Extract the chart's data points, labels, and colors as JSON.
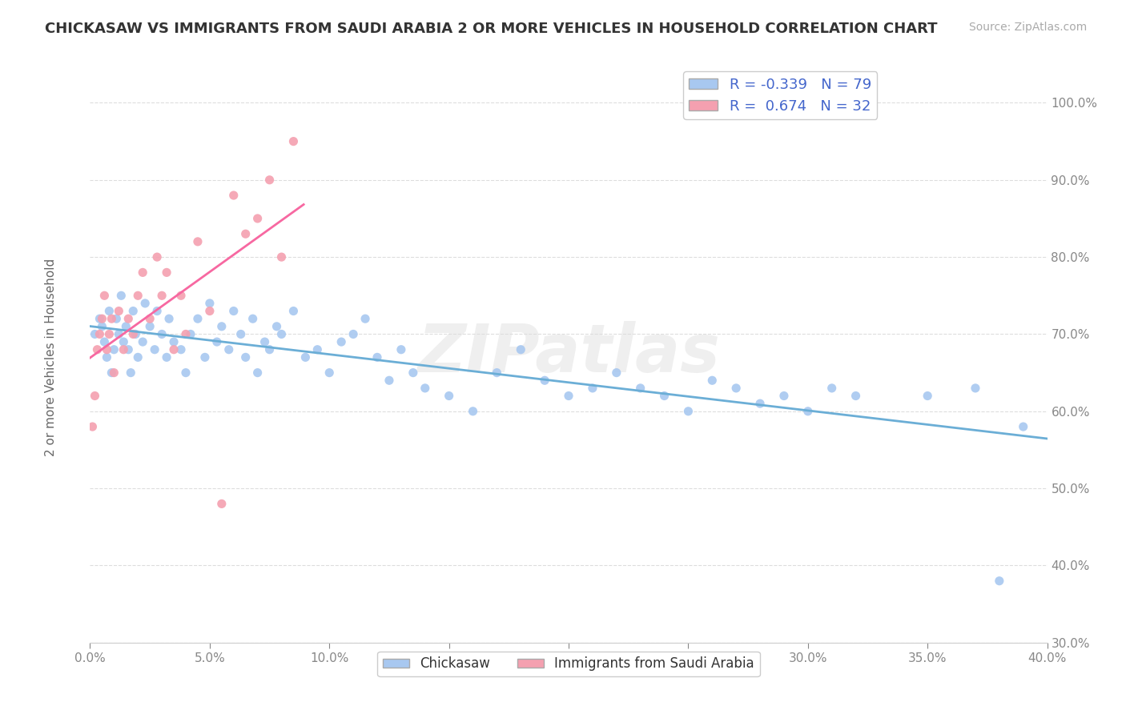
{
  "title": "CHICKASAW VS IMMIGRANTS FROM SAUDI ARABIA 2 OR MORE VEHICLES IN HOUSEHOLD CORRELATION CHART",
  "source": "Source: ZipAtlas.com",
  "ylabel": "2 or more Vehicles in Household",
  "legend_labels": [
    "Chickasaw",
    "Immigrants from Saudi Arabia"
  ],
  "chickasaw_color": "#a8c8f0",
  "saudi_color": "#f4a0b0",
  "chickasaw_line_color": "#6baed6",
  "saudi_line_color": "#f768a1",
  "legend_text_color": "#4466cc",
  "R_chickasaw": -0.339,
  "N_chickasaw": 79,
  "R_saudi": 0.674,
  "N_saudi": 32,
  "xlim": [
    0.0,
    0.4
  ],
  "ylim": [
    0.3,
    1.05
  ],
  "background_color": "#ffffff",
  "watermark": "ZIPatlas",
  "chickasaw_x": [
    0.002,
    0.004,
    0.005,
    0.006,
    0.007,
    0.008,
    0.009,
    0.01,
    0.011,
    0.012,
    0.013,
    0.014,
    0.015,
    0.016,
    0.017,
    0.018,
    0.019,
    0.02,
    0.022,
    0.023,
    0.025,
    0.027,
    0.028,
    0.03,
    0.032,
    0.033,
    0.035,
    0.038,
    0.04,
    0.042,
    0.045,
    0.048,
    0.05,
    0.053,
    0.055,
    0.058,
    0.06,
    0.063,
    0.065,
    0.068,
    0.07,
    0.073,
    0.075,
    0.078,
    0.08,
    0.085,
    0.09,
    0.095,
    0.1,
    0.105,
    0.11,
    0.115,
    0.12,
    0.125,
    0.13,
    0.135,
    0.14,
    0.15,
    0.16,
    0.17,
    0.18,
    0.19,
    0.2,
    0.21,
    0.22,
    0.23,
    0.24,
    0.25,
    0.26,
    0.27,
    0.28,
    0.29,
    0.3,
    0.31,
    0.32,
    0.35,
    0.37,
    0.38,
    0.39
  ],
  "chickasaw_y": [
    0.7,
    0.72,
    0.71,
    0.69,
    0.67,
    0.73,
    0.65,
    0.68,
    0.72,
    0.7,
    0.75,
    0.69,
    0.71,
    0.68,
    0.65,
    0.73,
    0.7,
    0.67,
    0.69,
    0.74,
    0.71,
    0.68,
    0.73,
    0.7,
    0.67,
    0.72,
    0.69,
    0.68,
    0.65,
    0.7,
    0.72,
    0.67,
    0.74,
    0.69,
    0.71,
    0.68,
    0.73,
    0.7,
    0.67,
    0.72,
    0.65,
    0.69,
    0.68,
    0.71,
    0.7,
    0.73,
    0.67,
    0.68,
    0.65,
    0.69,
    0.7,
    0.72,
    0.67,
    0.64,
    0.68,
    0.65,
    0.63,
    0.62,
    0.6,
    0.65,
    0.68,
    0.64,
    0.62,
    0.63,
    0.65,
    0.63,
    0.62,
    0.6,
    0.64,
    0.63,
    0.61,
    0.62,
    0.6,
    0.63,
    0.62,
    0.62,
    0.63,
    0.38,
    0.58
  ],
  "saudi_x": [
    0.001,
    0.002,
    0.003,
    0.004,
    0.005,
    0.006,
    0.007,
    0.008,
    0.009,
    0.01,
    0.012,
    0.014,
    0.016,
    0.018,
    0.02,
    0.022,
    0.025,
    0.028,
    0.03,
    0.032,
    0.035,
    0.038,
    0.04,
    0.045,
    0.05,
    0.055,
    0.06,
    0.065,
    0.07,
    0.075,
    0.08,
    0.085
  ],
  "saudi_y": [
    0.58,
    0.62,
    0.68,
    0.7,
    0.72,
    0.75,
    0.68,
    0.7,
    0.72,
    0.65,
    0.73,
    0.68,
    0.72,
    0.7,
    0.75,
    0.78,
    0.72,
    0.8,
    0.75,
    0.78,
    0.68,
    0.75,
    0.7,
    0.82,
    0.73,
    0.48,
    0.88,
    0.83,
    0.85,
    0.9,
    0.8,
    0.95
  ]
}
